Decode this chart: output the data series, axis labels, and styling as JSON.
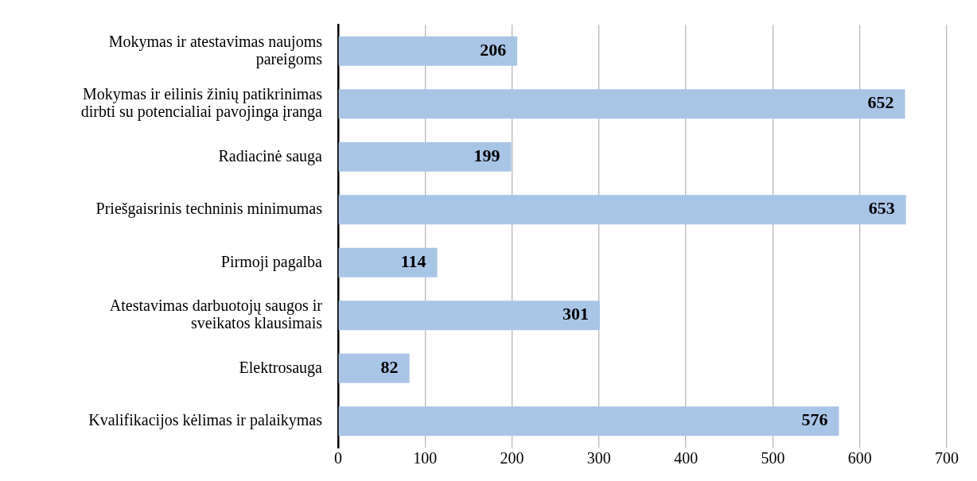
{
  "chart_data": {
    "type": "bar",
    "orientation": "horizontal",
    "categories": [
      "Mokymas ir atestavimas naujoms pareigoms",
      "Mokymas ir eilinis žinių patikrinimas dirbti su potencialiai pavojinga įranga",
      "Radiacinė sauga",
      "Priešgaisrinis techninis minimumas",
      "Pirmoji pagalba",
      "Atestavimas darbuotojų saugos ir sveikatos klausimais",
      "Elektrosauga",
      "Kvalifikacijos kėlimas ir palaikymas"
    ],
    "values": [
      206,
      652,
      199,
      653,
      114,
      301,
      82,
      576
    ],
    "color": "#a9c5e6",
    "xlim": [
      0,
      700
    ],
    "xticks": [
      0,
      100,
      200,
      300,
      400,
      500,
      600,
      700
    ],
    "grid": "x",
    "data_labels": true,
    "legend": false
  }
}
